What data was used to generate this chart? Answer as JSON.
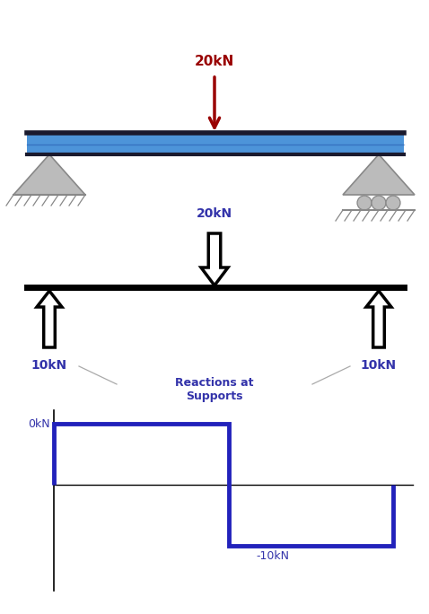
{
  "bg_color": "#ffffff",
  "beam_color": "#4d94d9",
  "beam_dark_top": "#1a1a2e",
  "beam_dark_bot": "#1a3a6b",
  "black": "#000000",
  "red": "#990000",
  "blue_label": "#3333aa",
  "sfd_color": "#2222bb",
  "gray_support": "#bbbbbb",
  "gray_edge": "#888888",
  "load_label": "20kN",
  "reaction_label": "10kN",
  "neg_label": "-10kN",
  "zero_label": "0kN",
  "reactions_text": "Reactions at\nSupports"
}
